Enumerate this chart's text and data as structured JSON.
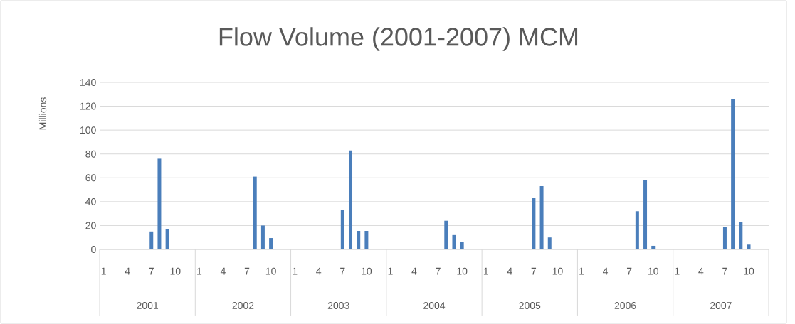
{
  "chart_data": {
    "type": "bar",
    "title": "Flow Volume (2001-2007) MCM",
    "ylabel": "Millions",
    "categories": [
      "1",
      null,
      null,
      "4",
      null,
      null,
      "7",
      null,
      null,
      "10",
      null,
      null,
      "1",
      null,
      null,
      "4",
      null,
      null,
      "7",
      null,
      null,
      "10",
      null,
      null,
      "1",
      null,
      null,
      "4",
      null,
      null,
      "7",
      null,
      null,
      "10",
      null,
      null,
      "1",
      null,
      null,
      "4",
      null,
      null,
      "7",
      null,
      null,
      "10",
      null,
      null,
      "1",
      null,
      null,
      "4",
      null,
      null,
      "7",
      null,
      null,
      "10",
      null,
      null,
      "1",
      null,
      null,
      "4",
      null,
      null,
      "7",
      null,
      null,
      "10",
      null,
      null,
      "1",
      null,
      null,
      "4",
      null,
      null,
      "7",
      null,
      null,
      "10",
      null,
      null
    ],
    "values": [
      0,
      0,
      0,
      0,
      0,
      0,
      15,
      76,
      17,
      0.3,
      0,
      0,
      0,
      0,
      0,
      0,
      0,
      0,
      0.3,
      61,
      20,
      9.5,
      0,
      0,
      0,
      0,
      0,
      0,
      0,
      0.3,
      33,
      83,
      15.5,
      15.5,
      0,
      0,
      0,
      0,
      0,
      0,
      0,
      0,
      0,
      24,
      12,
      6,
      0,
      0,
      0,
      0,
      0,
      0,
      0,
      0.3,
      43,
      53,
      10,
      0,
      0,
      0,
      0,
      0,
      0,
      0,
      0,
      0,
      0.5,
      32,
      58,
      3,
      0,
      0,
      0,
      0,
      0,
      0,
      0,
      0,
      18.5,
      126,
      23,
      4,
      0,
      0
    ],
    "color": "#4a7ebb",
    "ylim": [
      0,
      140
    ],
    "yticks": [
      0,
      20,
      40,
      60,
      80,
      100,
      120,
      140
    ],
    "grid": "y",
    "annotations": [
      "2001",
      "2002",
      "2003",
      "2004",
      "2005",
      "2006",
      "2007"
    ]
  }
}
